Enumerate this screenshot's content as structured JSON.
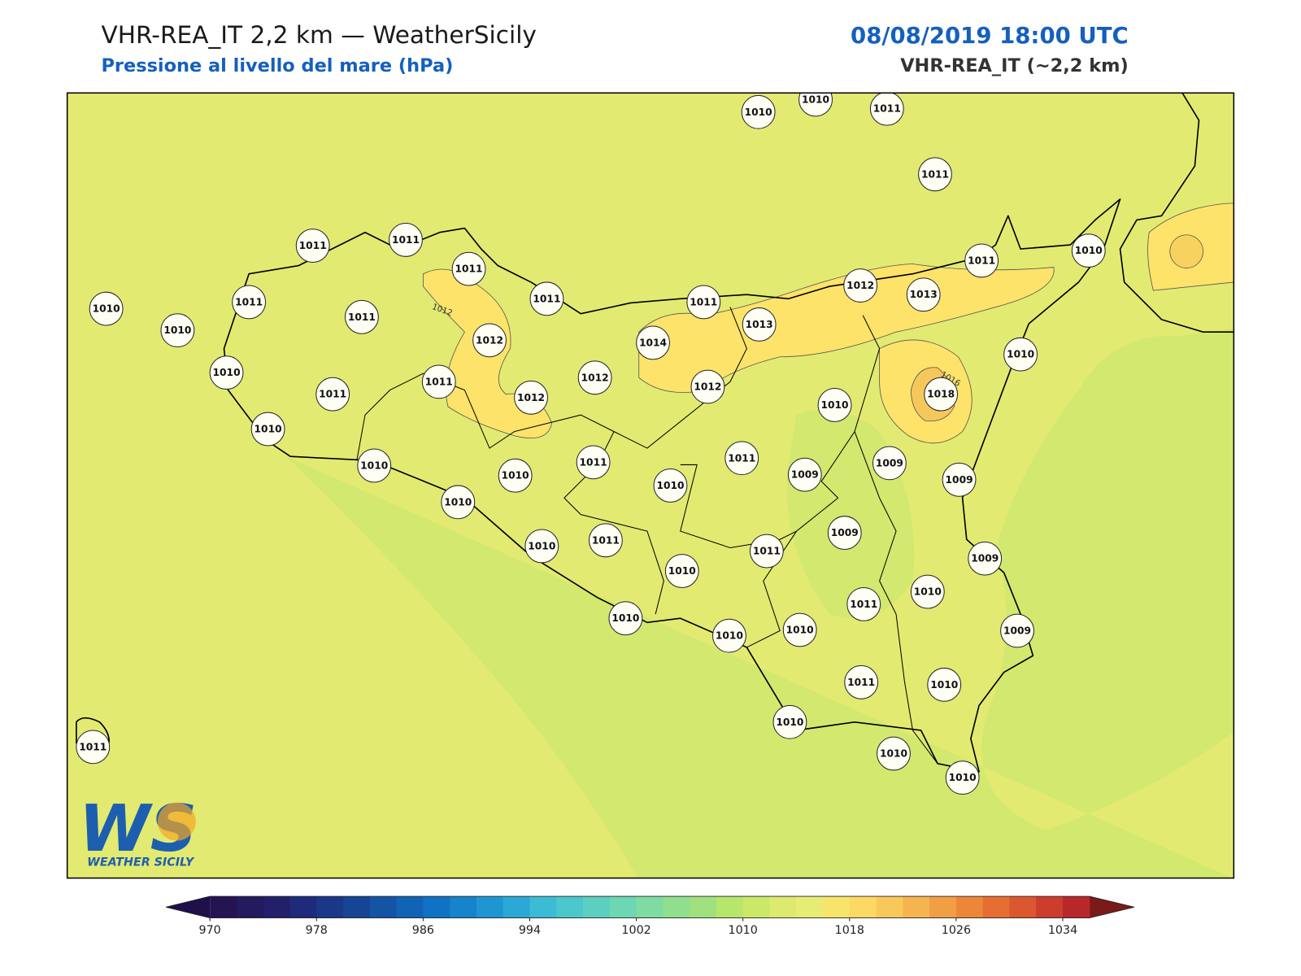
{
  "header": {
    "title": "VHR-REA_IT 2,2 km — WeatherSicily",
    "subtitle": "Pressione al livello del mare (hPa)",
    "date": "08/08/2019 18:00 UTC",
    "model": "VHR-REA_IT (~2,2 km)"
  },
  "map": {
    "contour_labels": [
      "1012",
      "1016"
    ],
    "stations": [
      {
        "value": 1010
      },
      {
        "value": 1010
      },
      {
        "value": 1011
      },
      {
        "value": 1011
      },
      {
        "value": 1011
      },
      {
        "value": 1011
      },
      {
        "value": 1011
      },
      {
        "value": 1011
      },
      {
        "value": 1011
      },
      {
        "value": 1011
      },
      {
        "value": 1010
      },
      {
        "value": 1010
      },
      {
        "value": 1010
      },
      {
        "value": 1011
      },
      {
        "value": 1011
      },
      {
        "value": 1012
      },
      {
        "value": 1014
      },
      {
        "value": 1013
      },
      {
        "value": 1012
      },
      {
        "value": 1013
      },
      {
        "value": 1010
      },
      {
        "value": 1011
      },
      {
        "value": 1011
      },
      {
        "value": 1012
      },
      {
        "value": 1012
      },
      {
        "value": 1012
      },
      {
        "value": 1010
      },
      {
        "value": 1018
      },
      {
        "value": 1010
      },
      {
        "value": 1010
      },
      {
        "value": 1010
      },
      {
        "value": 1010
      },
      {
        "value": 1011
      },
      {
        "value": 1010
      },
      {
        "value": 1011
      },
      {
        "value": 1009
      },
      {
        "value": 1009
      },
      {
        "value": 1009
      },
      {
        "value": 1010
      },
      {
        "value": 1010
      },
      {
        "value": 1011
      },
      {
        "value": 1010
      },
      {
        "value": 1011
      },
      {
        "value": 1009
      },
      {
        "value": 1009
      },
      {
        "value": 1010
      },
      {
        "value": 1011
      },
      {
        "value": 1009
      },
      {
        "value": 1010
      },
      {
        "value": 1010
      },
      {
        "value": 1010
      },
      {
        "value": 1011
      },
      {
        "value": 1010
      },
      {
        "value": 1010
      },
      {
        "value": 1010
      },
      {
        "value": 1010
      },
      {
        "value": 1011
      }
    ]
  },
  "colorbar": {
    "range": [
      970,
      1036
    ],
    "ticks": [
      970,
      978,
      986,
      994,
      1002,
      1010,
      1018,
      1026,
      1034
    ],
    "colors": [
      "#251452",
      "#241a5e",
      "#22206a",
      "#1f2a7a",
      "#1b3788",
      "#174596",
      "#1454a6",
      "#1163b6",
      "#0f72c4",
      "#1683cc",
      "#1f96d2",
      "#2aa9d6",
      "#3cbbd4",
      "#4cc7cb",
      "#5ccfc0",
      "#6dd6b2",
      "#7edca2",
      "#8fdf8f",
      "#a0e07e",
      "#b6e66c",
      "#cbe868",
      "#dde96f",
      "#e6ec74",
      "#f8e46a",
      "#fbd964",
      "#f9c85a",
      "#f5b450",
      "#f19f45",
      "#ec873a",
      "#e66e33",
      "#dc562f",
      "#cc3d2e",
      "#b8282b"
    ],
    "under_color": "#1f0f4a",
    "over_color": "#7a1a1a"
  },
  "logo": {
    "mark": "WS",
    "text": "WEATHER SICILY"
  }
}
